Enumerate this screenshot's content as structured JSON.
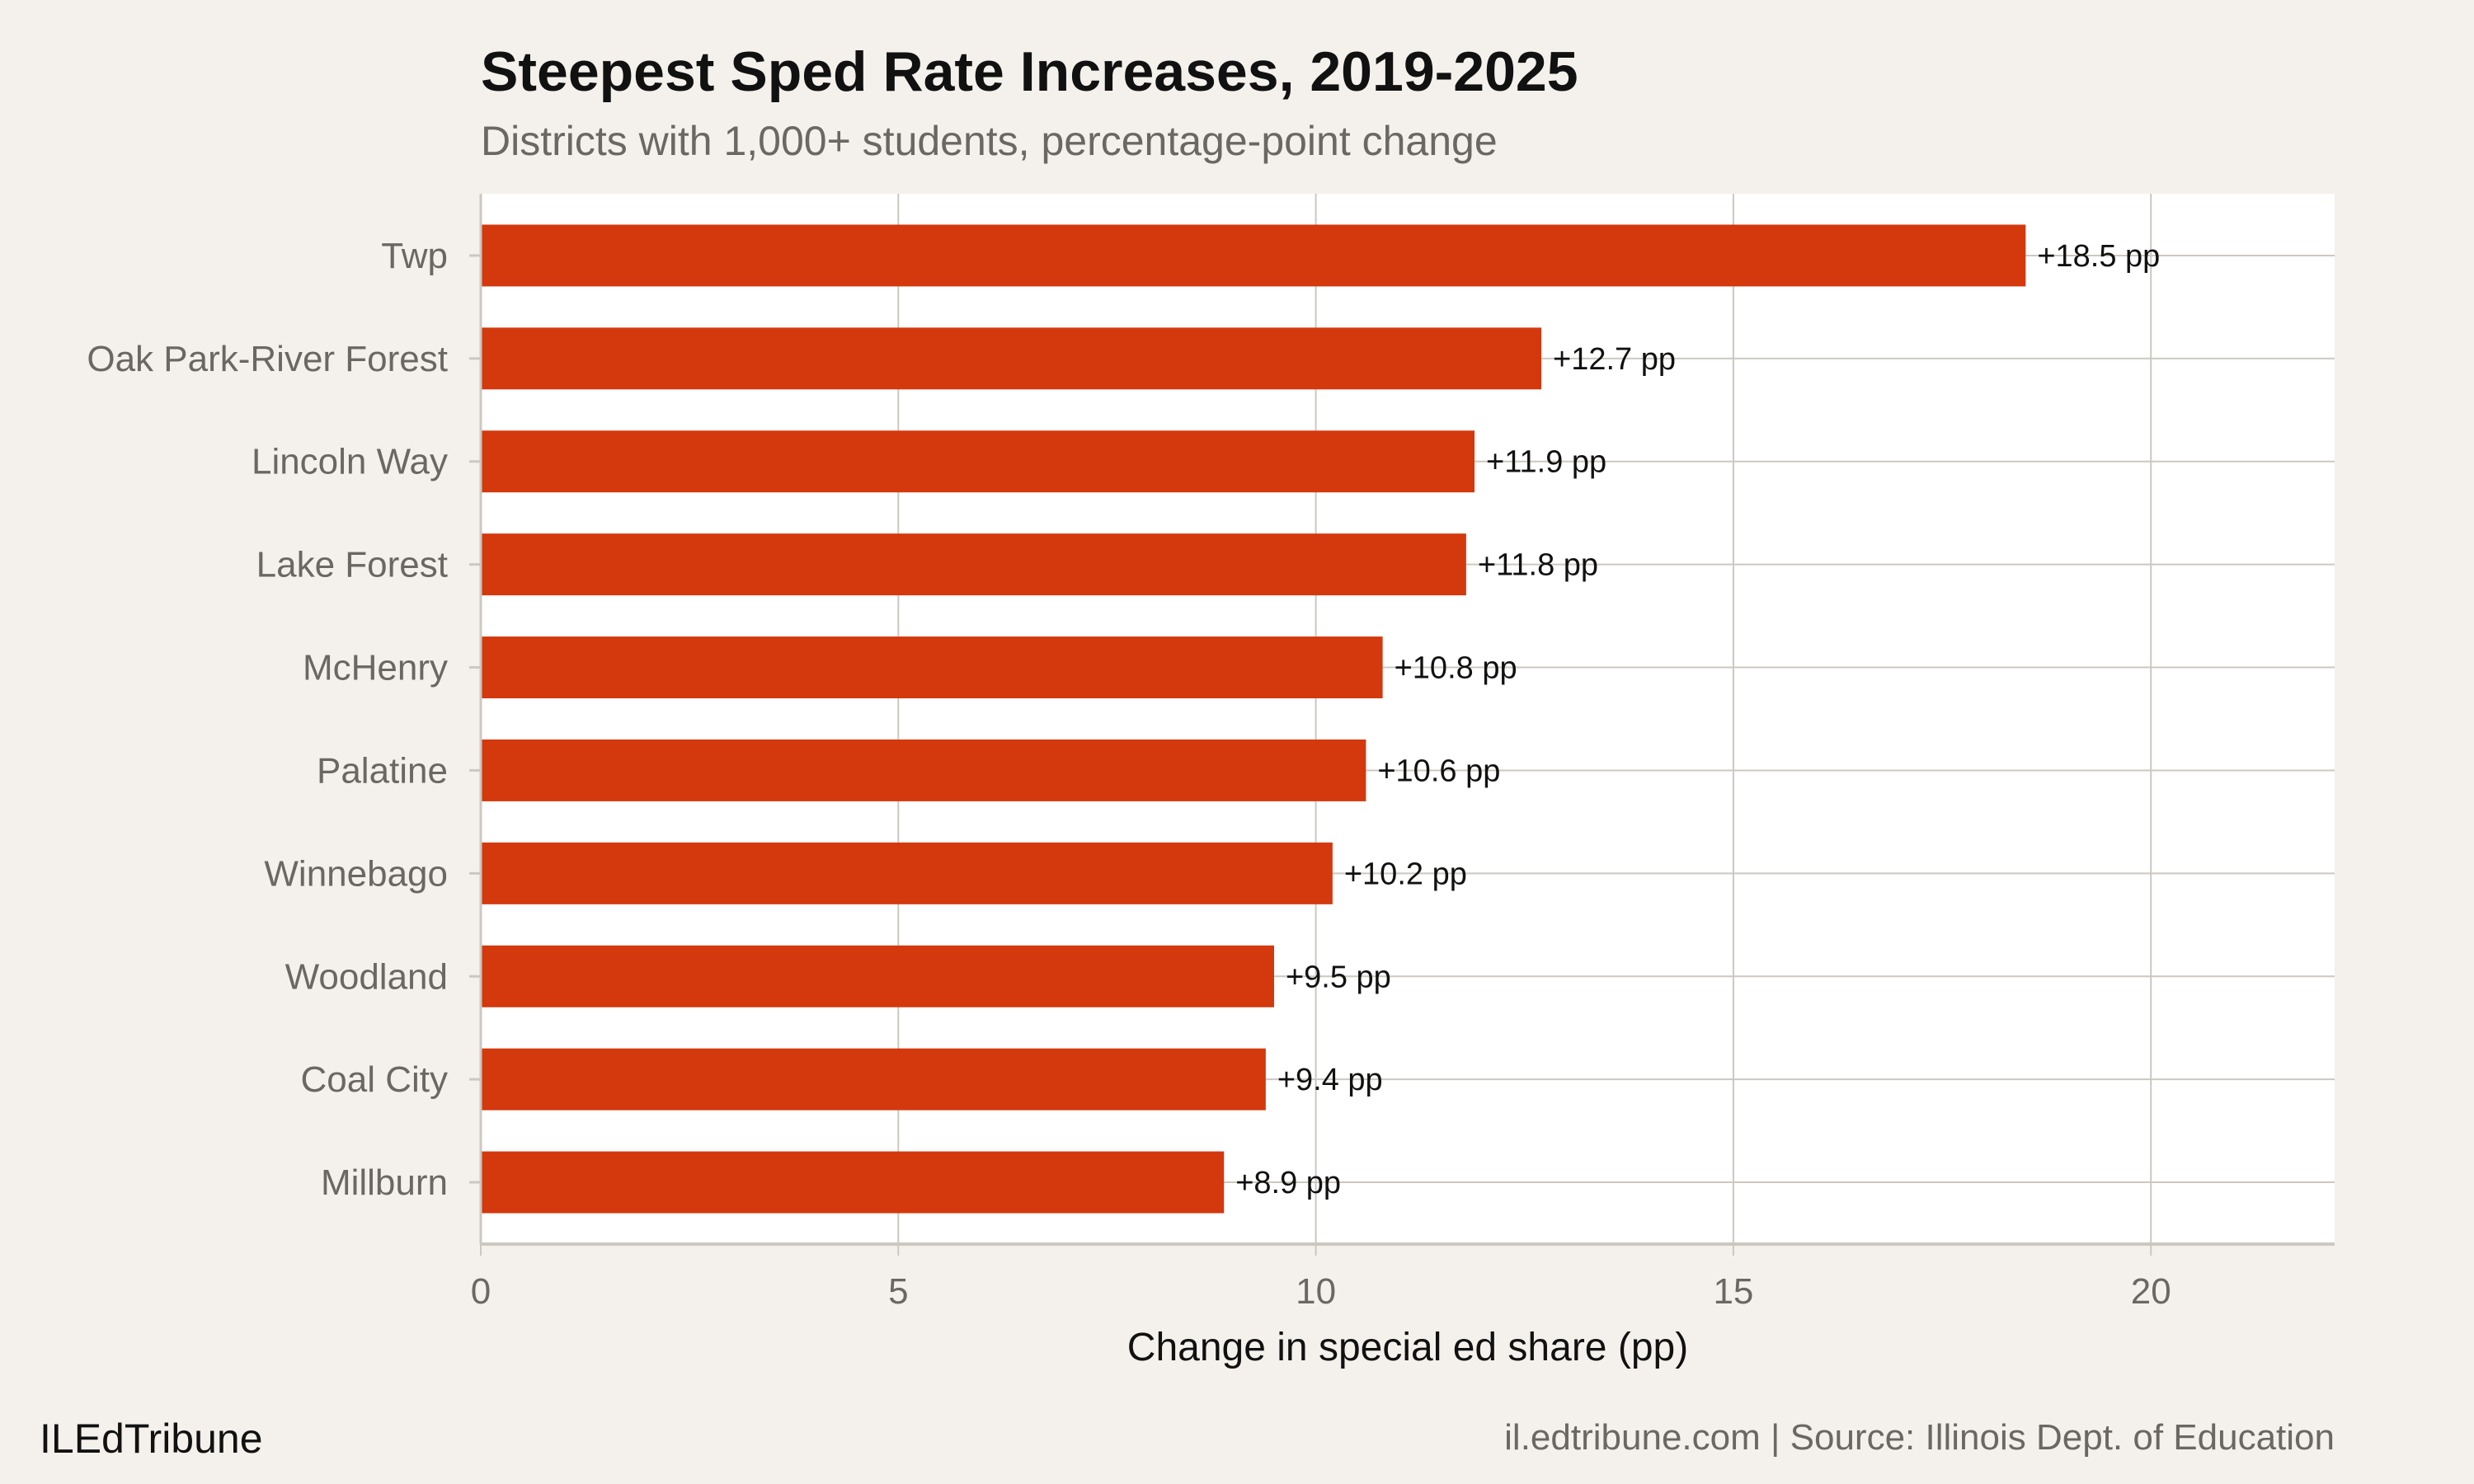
{
  "chart_data": {
    "type": "bar",
    "orientation": "horizontal",
    "title": "Steepest Sped Rate Increases, 2019-2025",
    "subtitle": "Districts with 1,000+ students, percentage-point change",
    "xlabel": "Change in special ed share (pp)",
    "ylabel": "",
    "categories": [
      "Twp",
      "Oak Park-River Forest",
      "Lincoln Way",
      "Lake Forest",
      "McHenry",
      "Palatine",
      "Winnebago",
      "Woodland",
      "Coal City",
      "Millburn"
    ],
    "values": [
      18.5,
      12.7,
      11.9,
      11.8,
      10.8,
      10.6,
      10.2,
      9.5,
      9.4,
      8.9
    ],
    "data_labels": [
      "+18.5 pp",
      "+12.7 pp",
      "+11.9 pp",
      "+11.8 pp",
      "+10.8 pp",
      "+10.6 pp",
      "+10.2 pp",
      "+9.5 pp",
      "+9.4 pp",
      "+8.9 pp"
    ],
    "xlim": [
      0,
      22.2
    ],
    "xticks": [
      0,
      5,
      10,
      15,
      20
    ],
    "xtick_labels": [
      "0",
      "5",
      "10",
      "15",
      "20"
    ],
    "grid": true,
    "bar_color": "#d4380d",
    "panel_color": "#ffffff",
    "background_color": "#f4f1ec",
    "grid_color": "#ccc8c0"
  },
  "footer": {
    "brand": "ILEdTribune",
    "source": "il.edtribune.com | Source: Illinois Dept. of Education"
  }
}
